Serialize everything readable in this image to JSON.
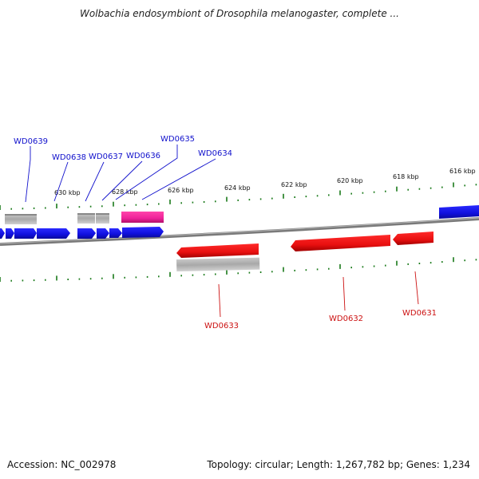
{
  "title": "Wolbachia endosymbiont of Drosophila melanogaster, complete ...",
  "footer": {
    "accession": "Accession: NC_002978",
    "topology": "Topology: circular; Length: 1,267,782 bp; Genes: 1,234"
  },
  "ticks": [
    {
      "label": "630 kbp"
    },
    {
      "label": "628 kbp"
    },
    {
      "label": "626 kbp"
    },
    {
      "label": "624 kbp"
    },
    {
      "label": "622 kbp"
    },
    {
      "label": "620 kbp"
    },
    {
      "label": "618 kbp"
    },
    {
      "label": "616 kbp"
    }
  ],
  "genes_forward": [
    {
      "name": "WD0639"
    },
    {
      "name": "WD0638"
    },
    {
      "name": "WD0637"
    },
    {
      "name": "WD0636"
    },
    {
      "name": "WD0635"
    },
    {
      "name": "WD0634"
    }
  ],
  "genes_reverse": [
    {
      "name": "WD0633"
    },
    {
      "name": "WD0632"
    },
    {
      "name": "WD0631"
    }
  ],
  "colors": {
    "forward": "#1010dd",
    "reverse": "#ee1111",
    "gray_feature": "#a8a8a8",
    "highlight": "#ee2299",
    "backbone": "#808080",
    "tick": "#1a7a1a",
    "label_forward": "#1010cc",
    "label_reverse": "#cc1111"
  }
}
